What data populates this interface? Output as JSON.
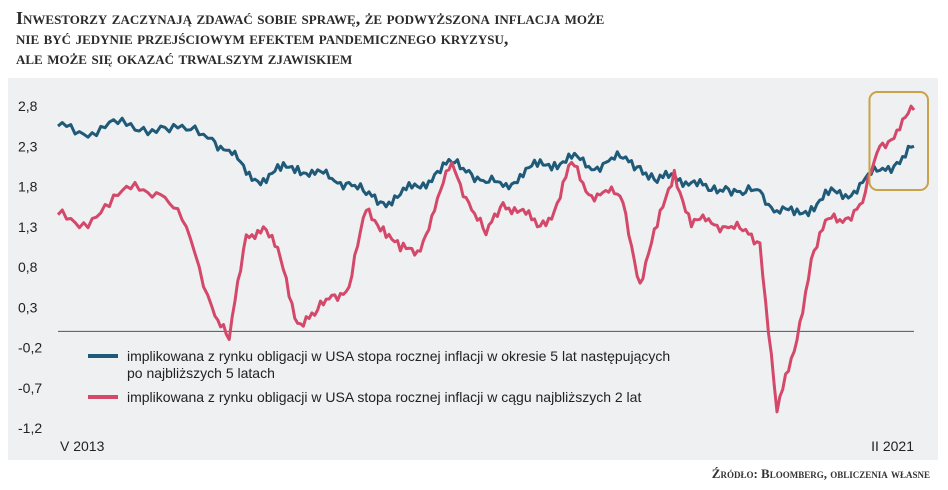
{
  "title": {
    "line1": "Inwestorzy zaczynają zdawać sobie sprawę, że podwyższona inflacja może",
    "line2": "nie być jedynie przejściowym efektem pandemicznego kryzysu,",
    "line3": "ale może się okazać trwalszym zjawiskiem"
  },
  "source": "Źródło: Bloomberg, obliczenia własne",
  "colors": {
    "series_5y5y": "#1f5a78",
    "series_2y": "#d4486a",
    "highlight_box": "#c9a24a",
    "panel_bg": "#eef0f2"
  },
  "chart_data": {
    "type": "line",
    "ylim": [
      -1.2,
      2.8
    ],
    "y_ticks": [
      "2,8",
      "2,3",
      "1,8",
      "1,3",
      "0,8",
      "0,3",
      "-0,2",
      "-0,7",
      "-1,2"
    ],
    "y_tick_values": [
      2.8,
      2.3,
      1.8,
      1.3,
      0.8,
      0.3,
      -0.2,
      -0.7,
      -1.2
    ],
    "x_start_label": "V 2013",
    "x_end_label": "II 2021",
    "zero_line": true,
    "legend_position": "bottom-left",
    "x": [
      0,
      0.03,
      0.06,
      0.09,
      0.12,
      0.15,
      0.18,
      0.2,
      0.22,
      0.24,
      0.26,
      0.28,
      0.3,
      0.32,
      0.34,
      0.36,
      0.38,
      0.4,
      0.42,
      0.44,
      0.46,
      0.48,
      0.5,
      0.52,
      0.54,
      0.56,
      0.58,
      0.6,
      0.62,
      0.64,
      0.66,
      0.68,
      0.7,
      0.72,
      0.74,
      0.76,
      0.78,
      0.8,
      0.82,
      0.84,
      0.86,
      0.88,
      0.9,
      0.92,
      0.94,
      0.96,
      0.98,
      1.0
    ],
    "series": [
      {
        "name": "implikowana z rynku obligacji w USA stopa rocznej inflacji w okresie 5 lat następujących po najbliższych 5 latach",
        "values": [
          2.55,
          2.45,
          2.6,
          2.5,
          2.55,
          2.5,
          2.4,
          2.25,
          1.95,
          1.9,
          2.0,
          2.05,
          1.95,
          1.9,
          1.85,
          1.7,
          1.6,
          1.7,
          1.8,
          1.95,
          2.1,
          2.0,
          1.85,
          1.8,
          1.95,
          2.05,
          2.1,
          2.15,
          2.05,
          2.1,
          2.15,
          2.05,
          1.85,
          1.95,
          1.85,
          1.75,
          1.8,
          1.7,
          1.75,
          1.5,
          1.45,
          1.55,
          1.7,
          1.7,
          1.85,
          2.0,
          2.1,
          2.3
        ]
      },
      {
        "name": "implikowana z rynku obligacji w USA stopa rocznej inflacji w cągu najbliższych 2 lat",
        "values": [
          1.45,
          1.35,
          1.55,
          1.85,
          1.7,
          1.3,
          0.3,
          -0.1,
          1.2,
          1.3,
          0.9,
          0.1,
          0.2,
          0.45,
          0.55,
          1.5,
          1.3,
          1.0,
          1.0,
          1.5,
          2.1,
          1.6,
          1.2,
          1.6,
          1.5,
          1.3,
          1.5,
          2.1,
          1.7,
          1.75,
          1.6,
          0.6,
          1.3,
          2.0,
          1.3,
          1.4,
          1.3,
          1.25,
          1.1,
          -1.0,
          -0.25,
          0.9,
          1.4,
          1.4,
          1.6,
          2.3,
          2.5,
          2.75
        ]
      }
    ],
    "highlight": {
      "x_from": 0.955,
      "x_to": 1.0
    }
  }
}
